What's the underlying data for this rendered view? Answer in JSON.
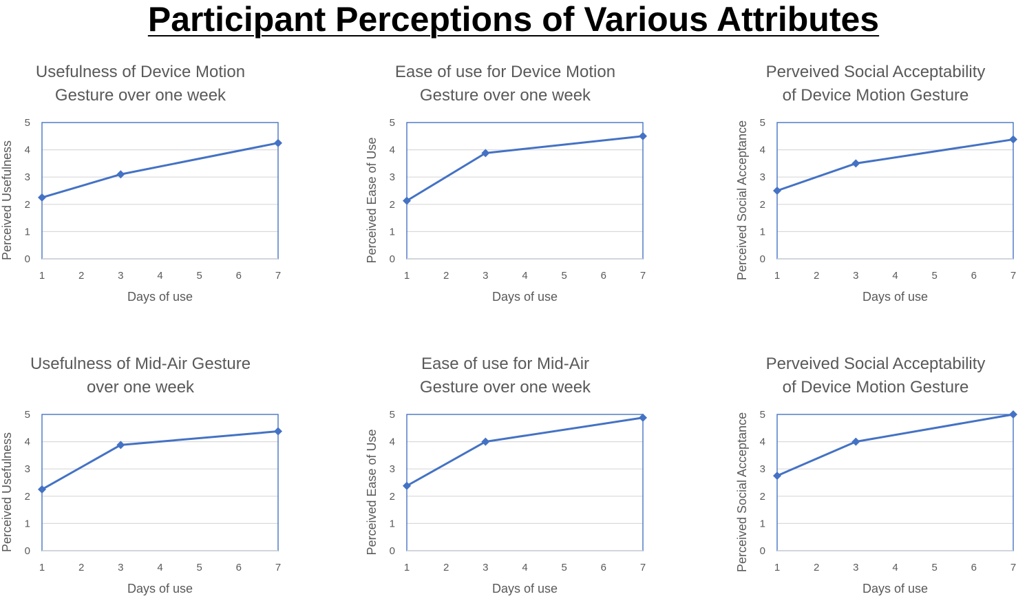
{
  "title": "Participant Perceptions of Various Attributes",
  "colors": {
    "series": "#4472C4",
    "grid": "#D9D9D9",
    "text": "#595959"
  },
  "chart_data": [
    {
      "type": "line",
      "title_lines": [
        "Usefulness of Device Motion",
        "Gesture over one week"
      ],
      "xlabel": "Days of use",
      "ylabel": "Perceived Usefulness",
      "xlim": [
        1,
        7
      ],
      "ylim": [
        0,
        5
      ],
      "xticks": [
        "1",
        "2",
        "3",
        "4",
        "5",
        "6",
        "7"
      ],
      "yticks": [
        "0",
        "1",
        "2",
        "3",
        "4",
        "5"
      ],
      "grid": "horizontal",
      "x": [
        1,
        3,
        7
      ],
      "values": [
        2.25,
        3.1,
        4.25
      ]
    },
    {
      "type": "line",
      "title_lines": [
        "Ease of use for Device Motion",
        "Gesture over one week"
      ],
      "xlabel": "Days of use",
      "ylabel": "Perceived Ease of Use",
      "xlim": [
        1,
        7
      ],
      "ylim": [
        0,
        5
      ],
      "xticks": [
        "1",
        "2",
        "3",
        "4",
        "5",
        "6",
        "7"
      ],
      "yticks": [
        "0",
        "1",
        "2",
        "3",
        "4",
        "5"
      ],
      "grid": "horizontal",
      "x": [
        1,
        3,
        7
      ],
      "values": [
        2.13,
        3.88,
        4.5
      ]
    },
    {
      "type": "line",
      "title_lines": [
        "Perveived Social Acceptability",
        "of Device Motion Gesture"
      ],
      "xlabel": "Days of use",
      "ylabel": "Perceived Social Acceptance",
      "xlim": [
        1,
        7
      ],
      "ylim": [
        0,
        5
      ],
      "xticks": [
        "1",
        "2",
        "3",
        "4",
        "5",
        "6",
        "7"
      ],
      "yticks": [
        "0",
        "1",
        "2",
        "3",
        "4",
        "5"
      ],
      "grid": "horizontal",
      "x": [
        1,
        3,
        7
      ],
      "values": [
        2.5,
        3.5,
        4.38
      ]
    },
    {
      "type": "line",
      "title_lines": [
        "Usefulness of Mid-Air Gesture",
        "over one week"
      ],
      "xlabel": "Days of use",
      "ylabel": "Perceived Usefulness",
      "xlim": [
        1,
        7
      ],
      "ylim": [
        0,
        5
      ],
      "xticks": [
        "1",
        "2",
        "3",
        "4",
        "5",
        "6",
        "7"
      ],
      "yticks": [
        "0",
        "1",
        "2",
        "3",
        "4",
        "5"
      ],
      "grid": "horizontal",
      "x": [
        1,
        3,
        7
      ],
      "values": [
        2.25,
        3.88,
        4.38
      ]
    },
    {
      "type": "line",
      "title_lines": [
        "Ease of use for Mid-Air",
        "Gesture over one week"
      ],
      "xlabel": "Days of use",
      "ylabel": "Perceived Ease of Use",
      "xlim": [
        1,
        7
      ],
      "ylim": [
        0,
        5
      ],
      "xticks": [
        "1",
        "2",
        "3",
        "4",
        "5",
        "6",
        "7"
      ],
      "yticks": [
        "0",
        "1",
        "2",
        "3",
        "4",
        "5"
      ],
      "grid": "horizontal",
      "x": [
        1,
        3,
        7
      ],
      "values": [
        2.38,
        4.0,
        4.88
      ]
    },
    {
      "type": "line",
      "title_lines": [
        "Perveived Social Acceptability",
        "of Device Motion Gesture"
      ],
      "xlabel": "Days of use",
      "ylabel": "Perceived Social Acceptance",
      "xlim": [
        1,
        7
      ],
      "ylim": [
        0,
        5
      ],
      "xticks": [
        "1",
        "2",
        "3",
        "4",
        "5",
        "6",
        "7"
      ],
      "yticks": [
        "0",
        "1",
        "2",
        "3",
        "4",
        "5"
      ],
      "grid": "horizontal",
      "x": [
        1,
        3,
        7
      ],
      "values": [
        2.75,
        4.0,
        5.0
      ]
    }
  ]
}
